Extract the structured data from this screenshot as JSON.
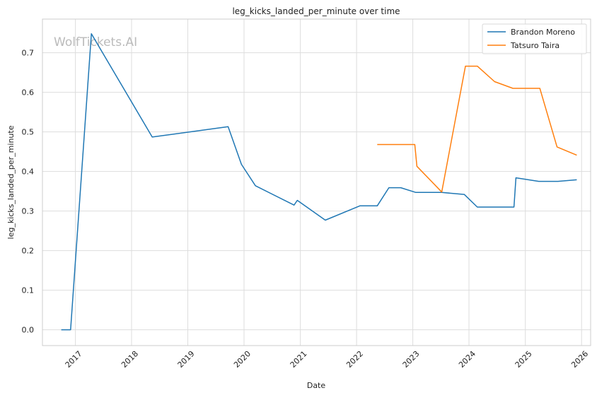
{
  "chart_data": {
    "type": "line",
    "title": "leg_kicks_landed_per_minute over time",
    "xlabel": "Date",
    "ylabel": "leg_kicks_landed_per_minute",
    "watermark": "WolfTickets.AI",
    "x_axis_type": "date",
    "xlim": [
      "2016-06-01",
      "2026-03-01"
    ],
    "ylim": [
      -0.04,
      0.785
    ],
    "x_ticks": [
      "2017-01-01",
      "2018-01-01",
      "2019-01-01",
      "2020-01-01",
      "2021-01-01",
      "2022-01-01",
      "2023-01-01",
      "2024-01-01",
      "2025-01-01",
      "2026-01-01"
    ],
    "x_tick_labels": [
      "2017",
      "2018",
      "2019",
      "2020",
      "2021",
      "2022",
      "2023",
      "2024",
      "2025",
      "2026"
    ],
    "y_ticks": [
      0.0,
      0.1,
      0.2,
      0.3,
      0.4,
      0.5,
      0.6,
      0.7
    ],
    "y_tick_labels": [
      "0.0",
      "0.1",
      "0.2",
      "0.3",
      "0.4",
      "0.5",
      "0.6",
      "0.7"
    ],
    "grid": true,
    "legend_position": "top-right",
    "series": [
      {
        "name": "Brandon Moreno",
        "color": "#1f77b4",
        "points": [
          [
            "2016-10-01",
            0.0
          ],
          [
            "2016-12-01",
            0.0
          ],
          [
            "2017-04-15",
            0.748
          ],
          [
            "2018-05-15",
            0.487
          ],
          [
            "2019-09-20",
            0.513
          ],
          [
            "2019-12-15",
            0.418
          ],
          [
            "2020-03-15",
            0.364
          ],
          [
            "2020-11-21",
            0.315
          ],
          [
            "2020-12-12",
            0.327
          ],
          [
            "2021-06-12",
            0.277
          ],
          [
            "2022-01-22",
            0.313
          ],
          [
            "2022-05-15",
            0.313
          ],
          [
            "2022-07-30",
            0.359
          ],
          [
            "2022-10-15",
            0.359
          ],
          [
            "2023-01-21",
            0.347
          ],
          [
            "2023-07-08",
            0.347
          ],
          [
            "2023-12-01",
            0.342
          ],
          [
            "2024-02-24",
            0.31
          ],
          [
            "2024-10-19",
            0.31
          ],
          [
            "2024-11-01",
            0.384
          ],
          [
            "2025-03-29",
            0.375
          ],
          [
            "2025-08-01",
            0.375
          ],
          [
            "2025-12-01",
            0.379
          ]
        ]
      },
      {
        "name": "Tatsuro Taira",
        "color": "#ff7f0e",
        "points": [
          [
            "2022-05-15",
            0.468
          ],
          [
            "2023-01-14",
            0.468
          ],
          [
            "2023-01-28",
            0.413
          ],
          [
            "2023-07-08",
            0.348
          ],
          [
            "2023-12-09",
            0.666
          ],
          [
            "2024-02-24",
            0.666
          ],
          [
            "2024-06-15",
            0.627
          ],
          [
            "2024-10-12",
            0.61
          ],
          [
            "2025-04-05",
            0.61
          ],
          [
            "2025-07-26",
            0.462
          ],
          [
            "2025-12-01",
            0.441
          ]
        ]
      }
    ]
  }
}
